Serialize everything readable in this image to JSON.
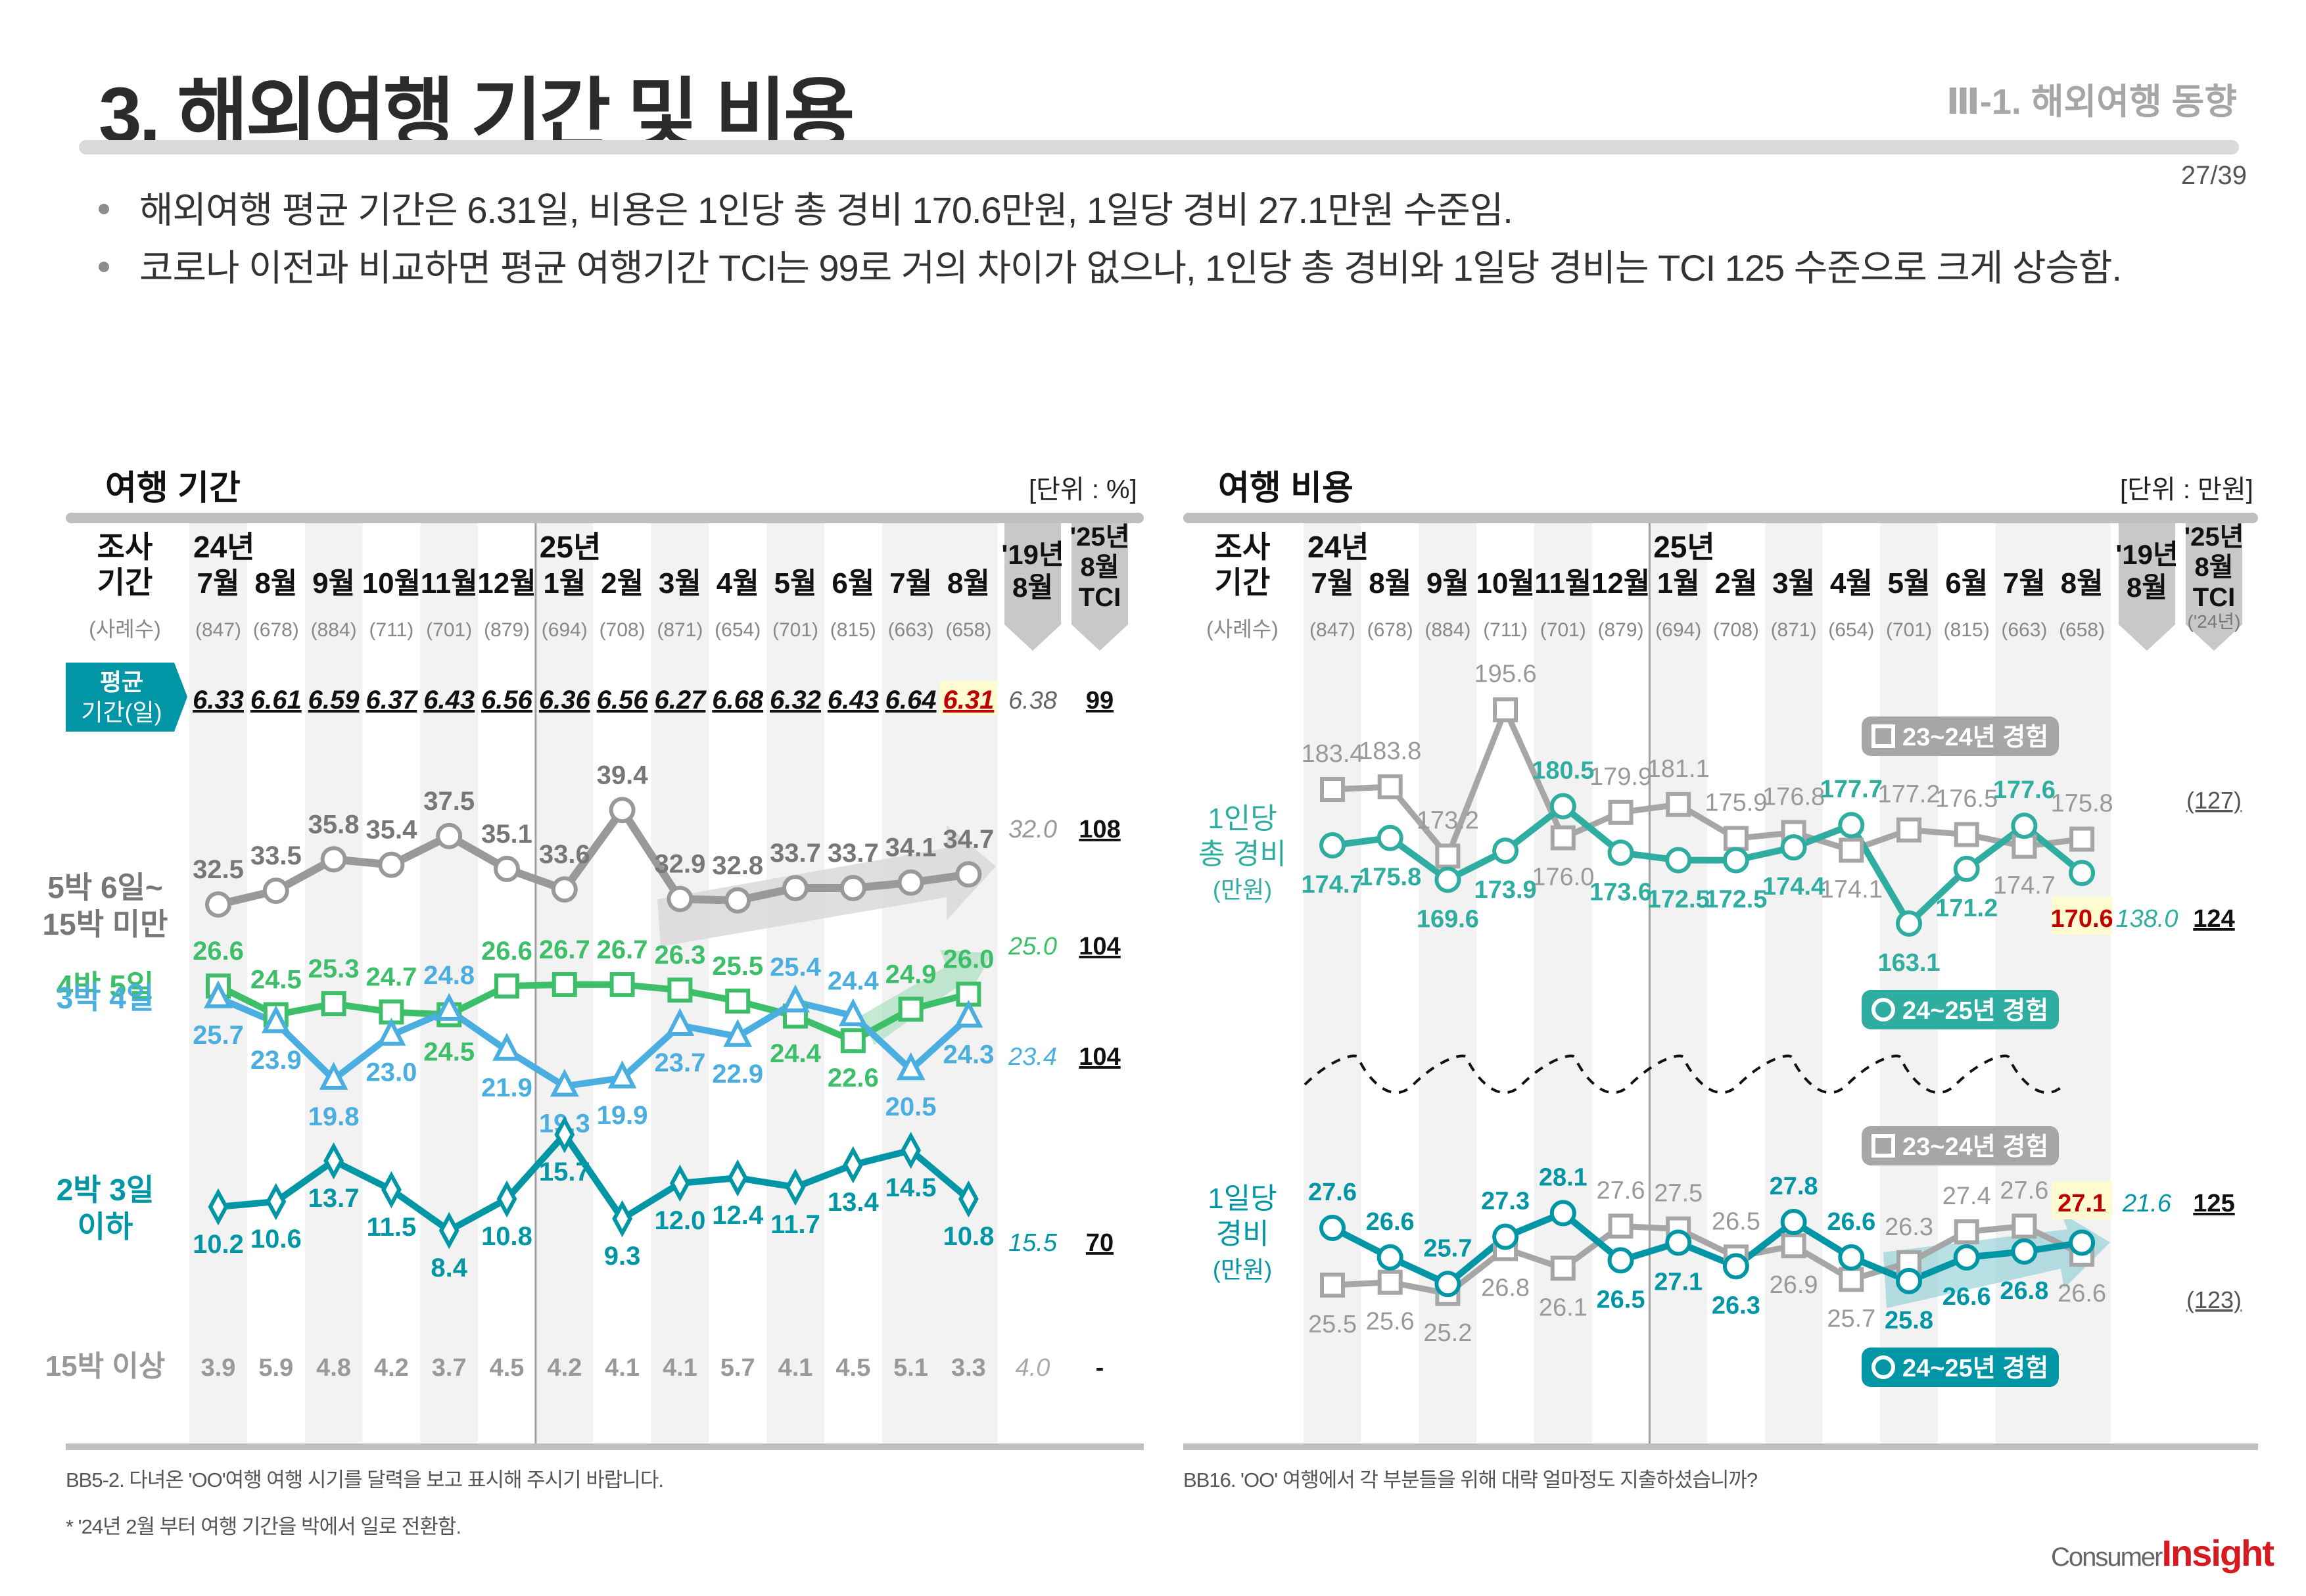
{
  "header": {
    "title": "3. 해외여행 기간 및 비용",
    "section": "Ⅲ-1. 해외여행 동향",
    "page": "27/39"
  },
  "bullets": [
    "해외여행 평균 기간은 6.31일, 비용은 1인당 총 경비 170.6만원, 1일당 경비 27.1만원 수준임.",
    "코로나 이전과 비교하면 평균 여행기간 TCI는 99로 거의 차이가 없으나, 1인당 총 경비와 1일당 경비는 TCI 125 수준으로 크게 상승함."
  ],
  "colors": {
    "teal": "#0096a5",
    "teal_cost": "#2eada0",
    "gray_line": "#a6a6a6",
    "green": "#3dbf6a",
    "blue": "#4baee0",
    "red": "#c00000",
    "highlight": "#fffbd0"
  },
  "chart_data": [
    {
      "type": "line",
      "title": "여행 기간",
      "unit": "[단위 : %]",
      "header_label_1": "조사",
      "header_label_2": "기간",
      "sample_label": "(사례수)",
      "year_labels": [
        {
          "index": 0,
          "label": "24년"
        },
        {
          "index": 6,
          "label": "25년"
        }
      ],
      "categories": [
        "7월",
        "8월",
        "9월",
        "10월",
        "11월",
        "12월",
        "1월",
        "2월",
        "3월",
        "4월",
        "5월",
        "6월",
        "7월",
        "8월"
      ],
      "samples": [
        "(847)",
        "(678)",
        "(884)",
        "(711)",
        "(701)",
        "(879)",
        "(694)",
        "(708)",
        "(871)",
        "(654)",
        "(701)",
        "(815)",
        "(663)",
        "(658)"
      ],
      "compare_col": "'19년 8월",
      "tci_col": "'25년 8월 TCI",
      "avg_row": {
        "label_line1": "평균",
        "label_line2": "기간(일)",
        "values": [
          6.33,
          6.61,
          6.59,
          6.37,
          6.43,
          6.56,
          6.36,
          6.56,
          6.27,
          6.68,
          6.32,
          6.43,
          6.64,
          6.31
        ],
        "compare": "6.38",
        "tci": "99"
      },
      "series": [
        {
          "name": "5박 6일~ 15박 미만",
          "label_line1": "5박 6일~",
          "label_line2": "15박 미만",
          "marker": "circle",
          "values": [
            32.5,
            33.5,
            35.8,
            35.4,
            37.5,
            35.1,
            33.6,
            39.4,
            32.9,
            32.8,
            33.7,
            33.7,
            34.1,
            34.7
          ],
          "compare": "32.0",
          "tci": "108"
        },
        {
          "name": "4박 5일",
          "label_line1": "4박 5일",
          "marker": "square",
          "values": [
            26.6,
            24.5,
            25.3,
            24.7,
            24.5,
            26.6,
            26.7,
            26.7,
            26.3,
            25.5,
            24.4,
            22.6,
            24.9,
            26.0
          ],
          "compare": "25.0",
          "tci": "104"
        },
        {
          "name": "3박 4일",
          "label_line1": "3박 4일",
          "marker": "triangle",
          "values": [
            25.7,
            23.9,
            19.8,
            23.0,
            24.8,
            21.9,
            19.3,
            19.9,
            23.7,
            22.9,
            25.4,
            24.4,
            20.5,
            24.3
          ],
          "compare": "23.4",
          "tci": "104"
        },
        {
          "name": "2박 3일 이하",
          "label_line1": "2박 3일",
          "label_line2": "이하",
          "marker": "diamond",
          "values": [
            10.2,
            10.6,
            13.7,
            11.5,
            8.4,
            10.8,
            15.7,
            9.3,
            12.0,
            12.4,
            11.7,
            13.4,
            14.5,
            10.8
          ],
          "compare": "15.5",
          "tci": "70"
        }
      ],
      "other_row": {
        "label": "15박 이상",
        "values": [
          "3.9",
          "5.9",
          "4.8",
          "4.2",
          "3.7",
          "4.5",
          "4.2",
          "4.1",
          "4.1",
          "5.7",
          "4.1",
          "4.5",
          "5.1",
          "3.3"
        ],
        "compare": "4.0",
        "tci": "-"
      },
      "footnotes": [
        "BB5-2. 다녀온 'OO'여행 여행 시기를 달력을 보고 표시해 주시기 바랍니다.",
        "* '24년 2월 부터 여행 기간을 박에서 일로 전환함."
      ]
    },
    {
      "type": "line",
      "title": "여행 비용",
      "unit": "[단위 : 만원]",
      "header_label_1": "조사",
      "header_label_2": "기간",
      "sample_label": "(사례수)",
      "year_labels": [
        {
          "index": 0,
          "label": "24년"
        },
        {
          "index": 6,
          "label": "25년"
        }
      ],
      "categories": [
        "7월",
        "8월",
        "9월",
        "10월",
        "11월",
        "12월",
        "1월",
        "2월",
        "3월",
        "4월",
        "5월",
        "6월",
        "7월",
        "8월"
      ],
      "samples": [
        "(847)",
        "(678)",
        "(884)",
        "(711)",
        "(701)",
        "(879)",
        "(694)",
        "(708)",
        "(871)",
        "(654)",
        "(701)",
        "(815)",
        "(663)",
        "(658)"
      ],
      "compare_col": "'19년 8월",
      "tci_col": "'25년 8월 TCI",
      "tci_sub": "('24년)",
      "legend": {
        "prev": "23~24년 경험",
        "curr": "24~25년 경험"
      },
      "groups": [
        {
          "label_line1": "1인당",
          "label_line2": "총 경비",
          "label_line3": "(만원)",
          "series": [
            {
              "name": "23~24년 경험",
              "marker": "square",
              "values": [
                183.4,
                183.8,
                173.2,
                195.6,
                176.0,
                179.9,
                181.1,
                175.9,
                176.8,
                174.1,
                177.2,
                176.5,
                174.7,
                175.8
              ],
              "tci": "(127)"
            },
            {
              "name": "24~25년 경험",
              "marker": "circle",
              "values": [
                174.7,
                175.8,
                169.6,
                173.9,
                180.5,
                173.6,
                172.5,
                172.5,
                174.4,
                177.7,
                163.1,
                171.2,
                177.6,
                170.6
              ],
              "compare": "138.0",
              "tci": "124"
            }
          ]
        },
        {
          "label_line1": "1일당",
          "label_line2": "경비",
          "label_line3": "(만원)",
          "series": [
            {
              "name": "23~24년 경험",
              "marker": "square",
              "values": [
                25.5,
                25.6,
                25.2,
                26.8,
                26.1,
                27.6,
                27.5,
                26.5,
                26.9,
                25.7,
                26.3,
                27.4,
                27.6,
                26.6
              ],
              "tci": "(123)"
            },
            {
              "name": "24~25년 경험",
              "marker": "circle",
              "values": [
                27.6,
                26.6,
                25.7,
                27.3,
                28.1,
                26.5,
                27.1,
                26.3,
                27.8,
                26.6,
                25.8,
                26.6,
                26.8,
                27.1
              ],
              "compare": "21.6",
              "tci": "125"
            }
          ]
        }
      ],
      "footnotes": [
        "BB16. 'OO' 여행에서 각 부분들을 위해 대략 얼마정도 지출하셨습니까?"
      ]
    }
  ],
  "logo": {
    "part1": "Consumer",
    "part2": "Insight"
  }
}
